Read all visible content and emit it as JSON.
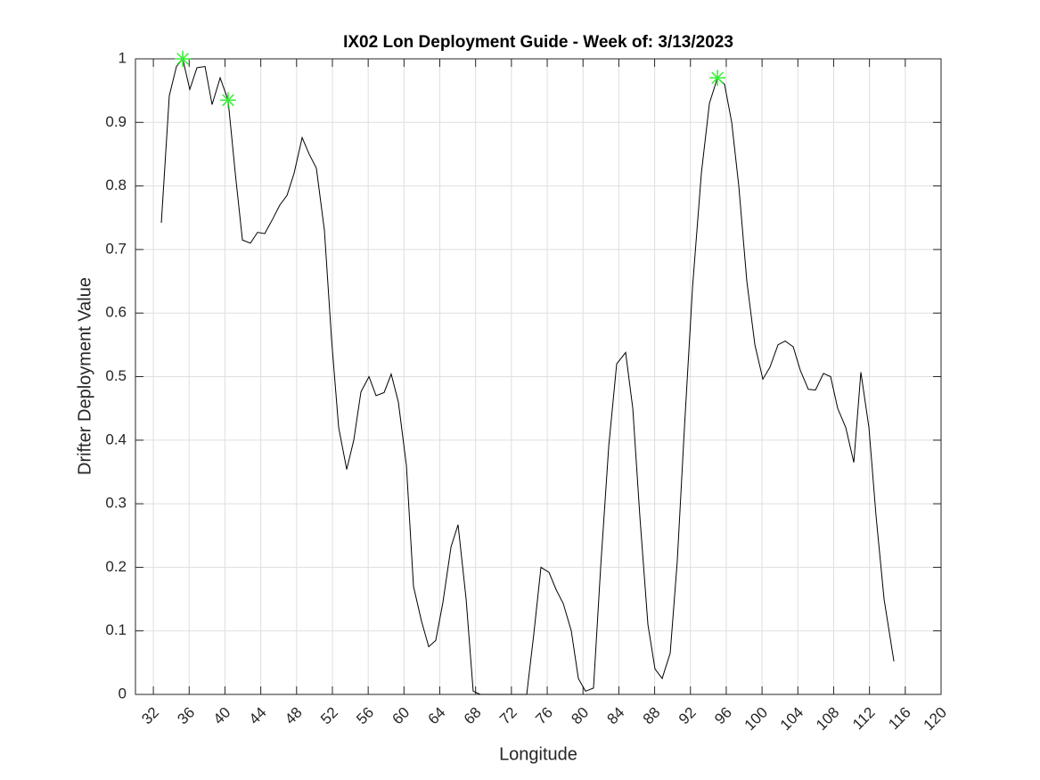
{
  "chart_data": {
    "type": "line",
    "title": "IX02 Lon Deployment Guide - Week of: 3/13/2023",
    "xlabel": "Longitude",
    "ylabel": "Drifter Deployment Value",
    "xlim": [
      30,
      120
    ],
    "ylim": [
      0,
      1
    ],
    "xticks": [
      32,
      36,
      40,
      44,
      48,
      52,
      56,
      60,
      64,
      68,
      72,
      76,
      80,
      84,
      88,
      92,
      96,
      100,
      104,
      108,
      112,
      116,
      120
    ],
    "yticks": [
      0,
      0.1,
      0.2,
      0.3,
      0.4,
      0.5,
      0.6,
      0.7,
      0.8,
      0.9,
      1
    ],
    "grid": true,
    "color": "#000000",
    "x": [
      32.89,
      33.78,
      34.58,
      35.28,
      36.07,
      36.87,
      37.77,
      38.56,
      39.46,
      40.35,
      41.15,
      41.95,
      42.84,
      43.64,
      44.44,
      45.33,
      46.13,
      46.93,
      47.72,
      48.62,
      49.41,
      50.21,
      51.11,
      51.9,
      52.7,
      53.6,
      54.39,
      55.19,
      56.09,
      56.88,
      57.78,
      58.57,
      59.37,
      60.27,
      61.06,
      61.96,
      62.76,
      63.55,
      64.35,
      65.25,
      66.04,
      66.94,
      67.73,
      68.53,
      69.43,
      70.22,
      71.12,
      71.92,
      72.71,
      73.71,
      74.5,
      75.3,
      76.2,
      76.99,
      77.79,
      78.69,
      79.48,
      80.28,
      81.17,
      81.97,
      82.87,
      83.76,
      84.76,
      85.56,
      86.35,
      87.25,
      88.04,
      88.84,
      89.74,
      90.53,
      91.33,
      92.23,
      93.22,
      94.12,
      95.02,
      95.81,
      96.61,
      97.4,
      98.3,
      99.2,
      100.09,
      100.89,
      101.78,
      102.58,
      103.48,
      104.27,
      105.17,
      105.97,
      106.86,
      107.66,
      108.45,
      109.35,
      110.25,
      111.04,
      111.94,
      112.74,
      113.63,
      114.73
    ],
    "values": [
      0.742,
      0.942,
      0.988,
      1.0,
      0.952,
      0.986,
      0.988,
      0.928,
      0.97,
      0.935,
      0.82,
      0.715,
      0.71,
      0.727,
      0.725,
      0.748,
      0.77,
      0.785,
      0.82,
      0.876,
      0.85,
      0.828,
      0.73,
      0.56,
      0.42,
      0.354,
      0.4,
      0.476,
      0.5,
      0.47,
      0.475,
      0.504,
      0.46,
      0.36,
      0.17,
      0.115,
      0.075,
      0.085,
      0.145,
      0.232,
      0.267,
      0.15,
      0.005,
      0,
      0,
      0,
      0,
      0,
      0,
      0,
      0.095,
      0.2,
      0.192,
      0.165,
      0.143,
      0.1,
      0.025,
      0.005,
      0.01,
      0.2,
      0.39,
      0.52,
      0.538,
      0.45,
      0.28,
      0.11,
      0.04,
      0.025,
      0.065,
      0.21,
      0.42,
      0.64,
      0.82,
      0.93,
      0.97,
      0.96,
      0.9,
      0.8,
      0.65,
      0.55,
      0.496,
      0.515,
      0.55,
      0.556,
      0.547,
      0.51,
      0.48,
      0.479,
      0.505,
      0.5,
      0.45,
      0.42,
      0.365,
      0.507,
      0.42,
      0.28,
      0.15,
      0.052
    ],
    "markers": {
      "color": "#33ee33",
      "x": [
        35.28,
        40.35,
        95.02
      ],
      "values": [
        1.0,
        0.935,
        0.97
      ]
    }
  }
}
